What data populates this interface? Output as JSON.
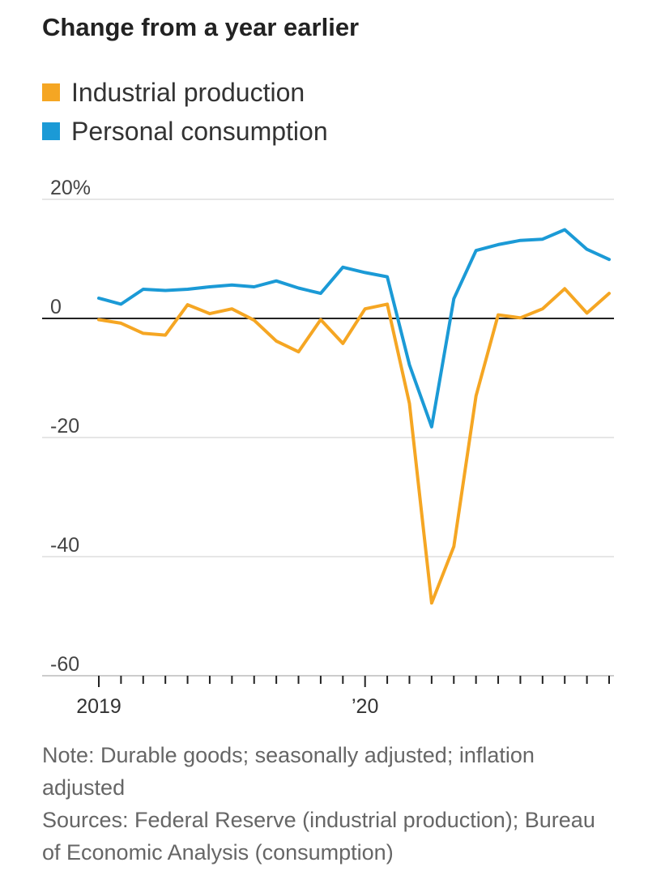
{
  "title": "Change from a year earlier",
  "legend": [
    {
      "name": "Industrial production",
      "color": "#f5a623"
    },
    {
      "name": "Personal consumption",
      "color": "#1b9ad6"
    }
  ],
  "note": "Note: Durable goods; seasonally adjusted; inflation adjusted",
  "sources": "Sources: Federal Reserve (industrial production); Bureau of Economic Analysis (consumption)",
  "chart_data": {
    "type": "line",
    "title": "Change from a year earlier",
    "xlabel": "",
    "ylabel": "",
    "ylim": [
      -60,
      20
    ],
    "yticks": [
      {
        "value": 20,
        "label": "20%"
      },
      {
        "value": 0,
        "label": "0"
      },
      {
        "value": -20,
        "label": "-20"
      },
      {
        "value": -40,
        "label": "-40"
      },
      {
        "value": -60,
        "label": "-60"
      }
    ],
    "xtick_labels": [
      {
        "index": 0,
        "label": "2019"
      },
      {
        "index": 12,
        "label": "’20"
      }
    ],
    "x": [
      "2019-01",
      "2019-02",
      "2019-03",
      "2019-04",
      "2019-05",
      "2019-06",
      "2019-07",
      "2019-08",
      "2019-09",
      "2019-10",
      "2019-11",
      "2019-12",
      "2020-01",
      "2020-02",
      "2020-03",
      "2020-04",
      "2020-05",
      "2020-06",
      "2020-07",
      "2020-08",
      "2020-09",
      "2020-10",
      "2020-11",
      "2020-12"
    ],
    "series": [
      {
        "name": "Industrial production",
        "color": "#f5a623",
        "values": [
          -0.2,
          -0.8,
          -2.5,
          -2.8,
          2.3,
          0.8,
          1.6,
          -0.3,
          -3.8,
          -5.6,
          -0.2,
          -4.2,
          1.6,
          2.4,
          -14.3,
          -47.8,
          -38.3,
          -13.0,
          0.6,
          0.1,
          1.6,
          5.0,
          0.9,
          4.2
        ]
      },
      {
        "name": "Personal consumption",
        "color": "#1b9ad6",
        "values": [
          3.4,
          2.4,
          4.9,
          4.7,
          4.9,
          5.3,
          5.6,
          5.3,
          6.3,
          5.1,
          4.2,
          8.6,
          7.7,
          7.0,
          -7.8,
          -18.2,
          3.3,
          11.4,
          12.4,
          13.1,
          13.3,
          14.9,
          11.6,
          9.9
        ]
      }
    ],
    "grid": true,
    "legend_position": "top-left"
  }
}
